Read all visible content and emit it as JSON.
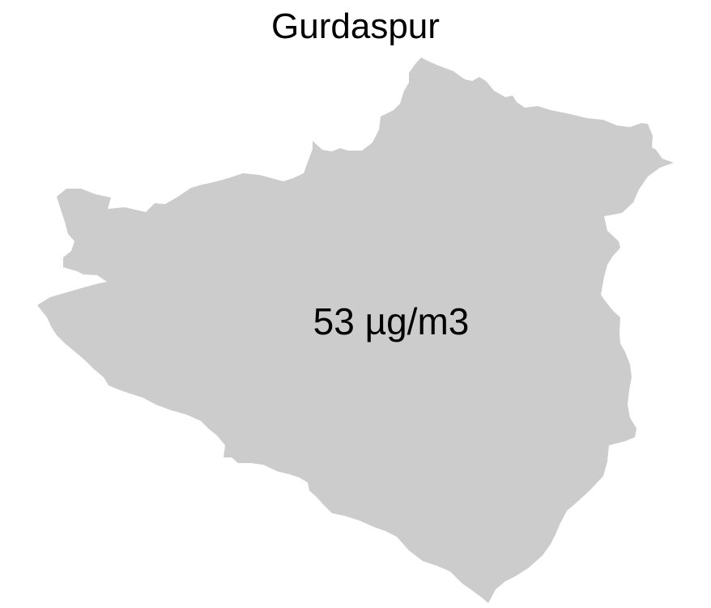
{
  "map": {
    "title": "Gurdaspur",
    "value_label": "53 µg/m3",
    "region_fill": "#cccccc",
    "background": "#ffffff",
    "text_color": "#000000"
  }
}
